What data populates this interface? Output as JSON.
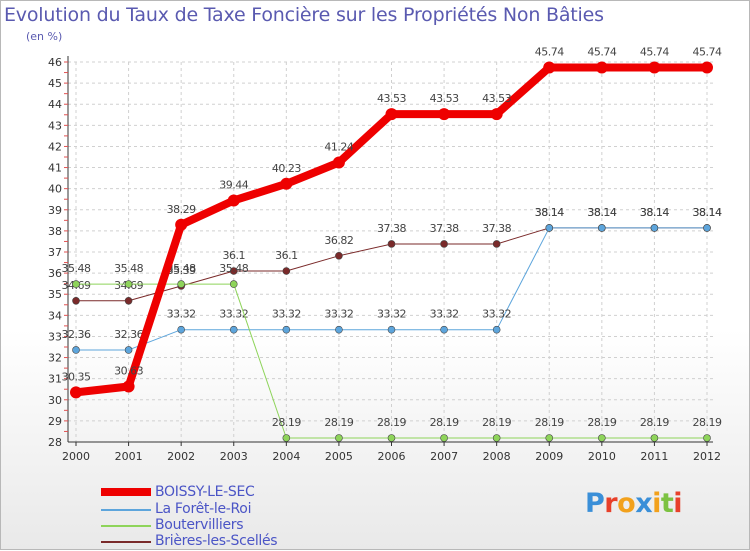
{
  "title": "Evolution du Taux de Taxe Foncière sur les Propriétés Non Bâties",
  "subtitle": "(en %)",
  "logo": {
    "text": "Proxiti"
  },
  "chart_data": {
    "type": "line",
    "title": "Evolution du Taux de Taxe Foncière sur les Propriétés Non Bâties",
    "ylabel": "(en %)",
    "xlabel": "",
    "ylim": [
      28,
      46
    ],
    "yticks": [
      28,
      29,
      30,
      31,
      32,
      33,
      34,
      35,
      36,
      37,
      38,
      39,
      40,
      41,
      42,
      43,
      44,
      45,
      46
    ],
    "categories": [
      "2000",
      "2001",
      "2002",
      "2003",
      "2004",
      "2005",
      "2006",
      "2007",
      "2008",
      "2009",
      "2010",
      "2011",
      "2012"
    ],
    "series": [
      {
        "name": "Brières-les-Scellés",
        "color": "#7a2a2a",
        "width": 1,
        "values": [
          34.69,
          34.69,
          35.39,
          36.1,
          36.1,
          36.82,
          37.38,
          37.38,
          37.38,
          38.14,
          38.14,
          38.14,
          38.14
        ],
        "labels": [
          "34.69",
          "34.69",
          "35.39",
          "36.1",
          "36.1",
          "36.82",
          "37.38",
          "37.38",
          "37.38",
          "38.14",
          "38.14",
          "38.14",
          "38.14"
        ]
      },
      {
        "name": "La Forêt-le-Roi",
        "color": "#5da5dc",
        "width": 1,
        "values": [
          32.36,
          32.36,
          33.32,
          33.32,
          33.32,
          33.32,
          33.32,
          33.32,
          33.32,
          38.14,
          38.14,
          38.14,
          38.14
        ],
        "labels": [
          "32.36",
          "32.36",
          "33.32",
          "33.32",
          "33.32",
          "33.32",
          "33.32",
          "33.32",
          "33.32",
          "38.14",
          "38.14",
          "38.14",
          "38.14"
        ]
      },
      {
        "name": "Boutervilliers",
        "color": "#8ed45a",
        "width": 1,
        "values": [
          35.48,
          35.48,
          35.48,
          35.48,
          28.19,
          28.19,
          28.19,
          28.19,
          28.19,
          28.19,
          28.19,
          28.19,
          28.19
        ],
        "labels": [
          "35.48",
          "35.48",
          "35.48",
          "35.48",
          "28.19",
          "28.19",
          "28.19",
          "28.19",
          "28.19",
          "28.19",
          "28.19",
          "28.19",
          "28.19"
        ]
      },
      {
        "name": "BOISSY-LE-SEC",
        "color": "#ee0000",
        "width": 8,
        "values": [
          30.35,
          30.63,
          38.29,
          39.44,
          40.23,
          41.24,
          43.53,
          43.53,
          43.53,
          45.74,
          45.74,
          45.74,
          45.74
        ],
        "labels": [
          "30.35",
          "30.63",
          "38.29",
          "39.44",
          "40.23",
          "41.24",
          "43.53",
          "43.53",
          "43.53",
          "45.74",
          "45.74",
          "45.74",
          "45.74"
        ]
      }
    ],
    "legend": [
      "BOISSY-LE-SEC",
      "La Forêt-le-Roi",
      "Boutervilliers",
      "Brières-les-Scellés"
    ]
  }
}
